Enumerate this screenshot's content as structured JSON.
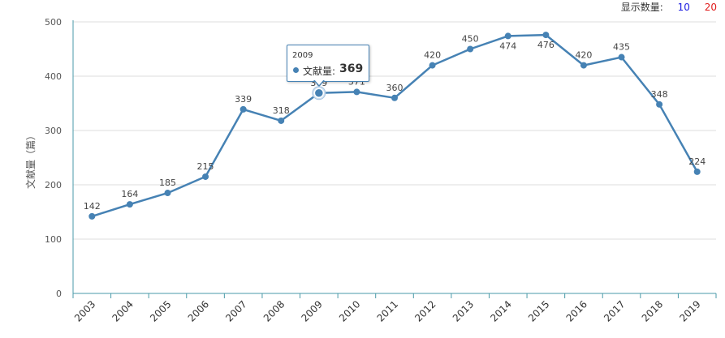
{
  "display_count": {
    "label": "显示数量:",
    "options": [
      "10",
      "20"
    ]
  },
  "tooltip": {
    "year": "2009",
    "series_label": "文献量:",
    "value": "369"
  },
  "colors": {
    "line": "#4682b4",
    "axis": "#4a9aa8",
    "grid": "#dcdcdc",
    "text": "#555555"
  },
  "chart_data": {
    "type": "line",
    "title": "",
    "xlabel": "",
    "ylabel": "文献量（篇）",
    "categories": [
      "2003",
      "2004",
      "2005",
      "2006",
      "2007",
      "2008",
      "2009",
      "2010",
      "2011",
      "2012",
      "2013",
      "2014",
      "2015",
      "2016",
      "2017",
      "2018",
      "2019"
    ],
    "series": [
      {
        "name": "文献量",
        "values": [
          142,
          164,
          185,
          215,
          339,
          318,
          369,
          371,
          360,
          420,
          450,
          474,
          476,
          420,
          435,
          348,
          224
        ]
      }
    ],
    "ylim": [
      0,
      500
    ],
    "yticks": [
      0,
      100,
      200,
      300,
      400,
      500
    ],
    "grid": true,
    "highlighted": "2009"
  }
}
